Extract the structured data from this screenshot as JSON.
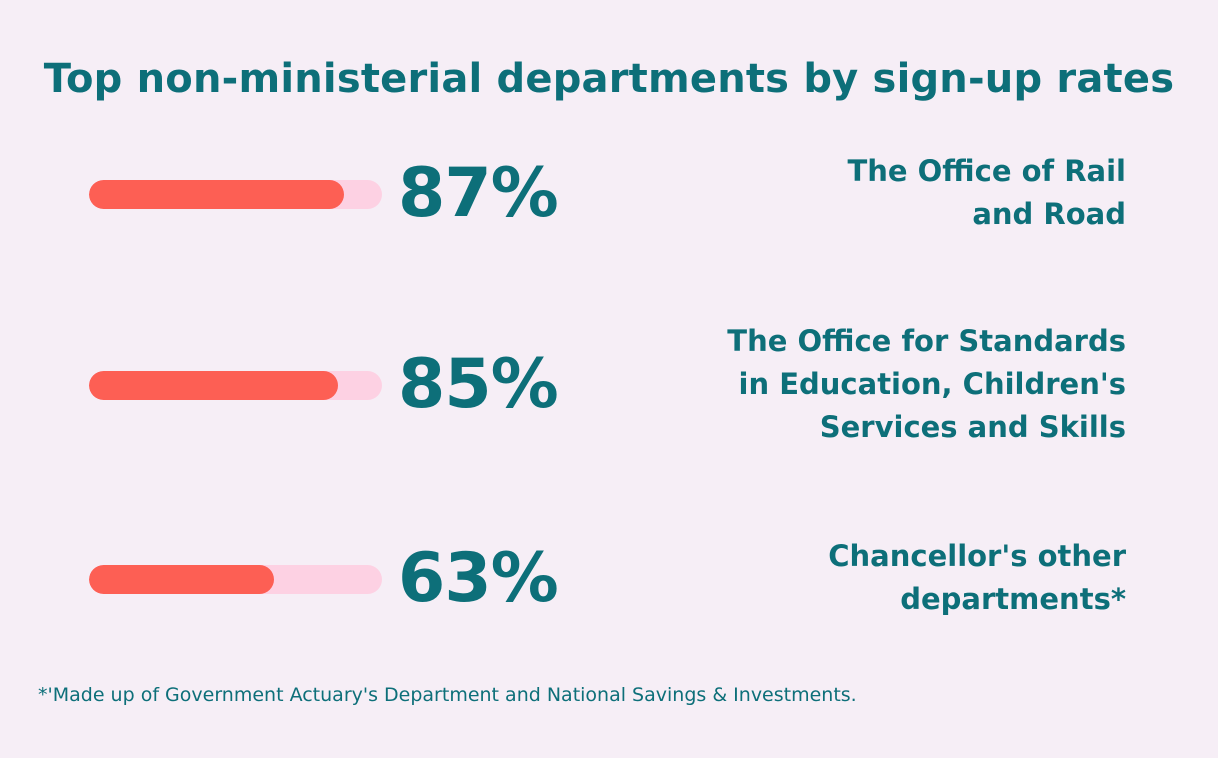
{
  "chart_data": {
    "type": "bar",
    "title": "Top non-ministerial departments by sign-up rates",
    "categories": [
      "The Office of Rail and Road",
      "The Office for Standards in Education, Children's Services and Skills",
      "Chancellor's other departments*"
    ],
    "values": [
      87,
      85,
      63
    ],
    "value_labels": [
      "87%",
      "85%",
      "63%"
    ],
    "ylim": [
      0,
      100
    ],
    "orientation": "horizontal",
    "colors": {
      "fill": "#fd5f54",
      "track": "#fdd1e3",
      "text": "#0d6f79",
      "background": "#f6eef6"
    },
    "footnote": "*'Made up of Government Actuary's Department and National Savings & Investments."
  }
}
